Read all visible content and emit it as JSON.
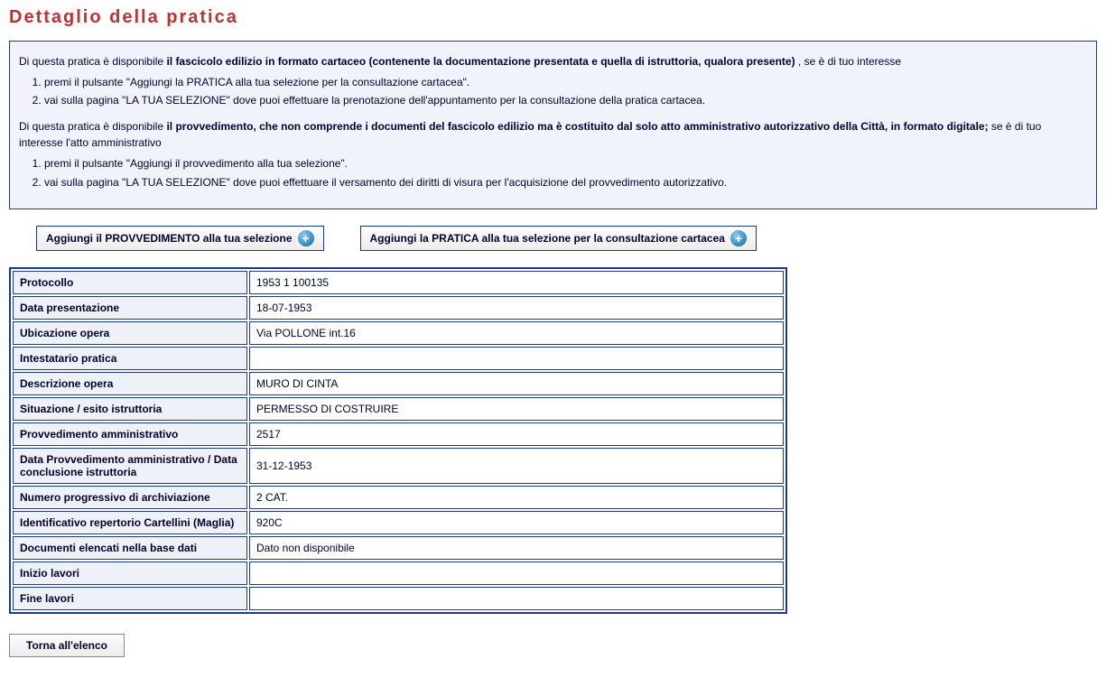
{
  "page_title": "Dettaglio della pratica",
  "info_box": {
    "p1_pre": "Di questa pratica è disponibile ",
    "p1_bold": "il fascicolo edilizio in formato cartaceo (contenente la documentazione presentata e quella di istruttoria, qualora presente)",
    "p1_post": " , se è di tuo interesse",
    "l1_item1": "premi il pulsante \"Aggiungi la PRATICA alla tua selezione per la consultazione cartacea\".",
    "l1_item2": "vai sulla pagina \"LA TUA SELEZIONE\" dove puoi effettuare la prenotazione dell'appuntamento per la consultazione della pratica cartacea.",
    "p2_pre": "Di questa pratica è disponibile ",
    "p2_bold": "il provvedimento, che non comprende i documenti del fascicolo edilizio ma è costituito dal solo atto amministrativo autorizzativo della Città, in formato digitale;",
    "p2_post": " se è di tuo interesse l'atto amministrativo",
    "l2_item1": "premi il pulsante \"Aggiungi il provvedimento alla tua selezione\".",
    "l2_item2": "vai sulla pagina \"LA TUA SELEZIONE\" dove puoi effettuare il versamento dei diritti di visura per l'acquisizione del provvedimento autorizzativo."
  },
  "actions": {
    "add_provvedimento": "Aggiungi il PROVVEDIMENTO alla tua selezione",
    "add_pratica": "Aggiungi la PRATICA alla tua selezione per la consultazione cartacea"
  },
  "details": {
    "rows": [
      {
        "label": "Protocollo",
        "value": "1953 1 100135"
      },
      {
        "label": "Data presentazione",
        "value": "18-07-1953"
      },
      {
        "label": "Ubicazione opera",
        "value": "Via POLLONE int.16"
      },
      {
        "label": "Intestatario pratica",
        "value": ""
      },
      {
        "label": "Descrizione opera",
        "value": "MURO DI CINTA"
      },
      {
        "label": "Situazione / esito istruttoria",
        "value": "PERMESSO DI COSTRUIRE"
      },
      {
        "label": "Provvedimento amministrativo",
        "value": "2517"
      },
      {
        "label": "Data Provvedimento amministrativo / Data conclusione istruttoria",
        "value": "31-12-1953"
      },
      {
        "label": "Numero progressivo di archiviazione",
        "value": "2 CAT."
      },
      {
        "label": "Identificativo repertorio Cartellini (Maglia)",
        "value": "920C"
      },
      {
        "label": "Documenti elencati nella base dati",
        "value": "Dato non disponibile"
      },
      {
        "label": "Inizio lavori",
        "value": ""
      },
      {
        "label": "Fine lavori",
        "value": ""
      }
    ]
  },
  "back_button": "Torna all'elenco",
  "colors": {
    "title": "#c03030",
    "border": "#1a3a8a",
    "box_bg": "#f0f3fc",
    "label_bg": "#eef1f8",
    "text": "#000033"
  }
}
